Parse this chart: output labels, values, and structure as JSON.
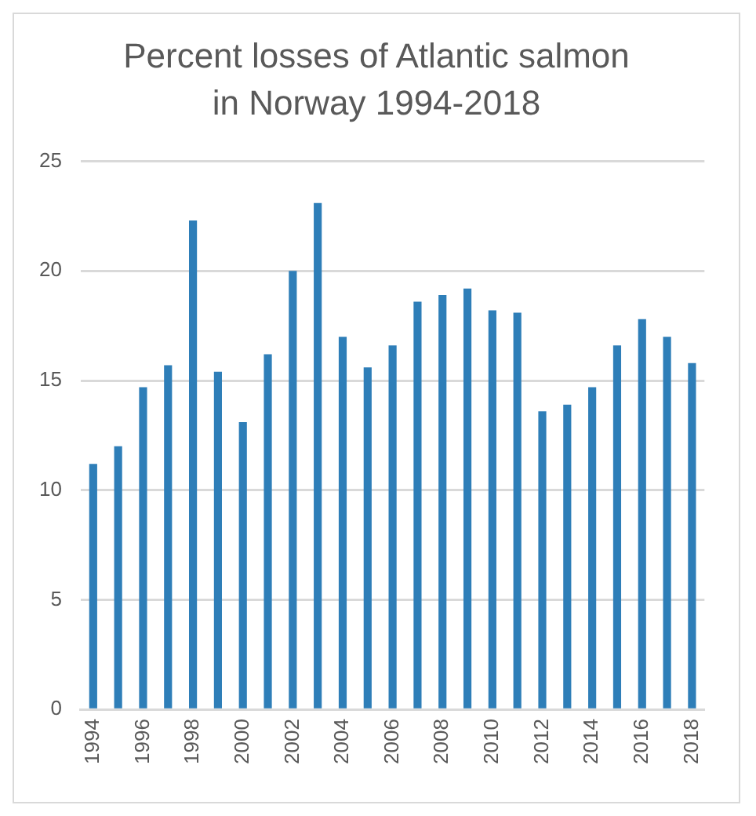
{
  "chart_data": {
    "type": "bar",
    "title": "Percent losses of Atlantic salmon in Norway 1994-2018",
    "categories": [
      "1994",
      null,
      "1996",
      null,
      "1998",
      null,
      "2000",
      null,
      "2002",
      null,
      "2004",
      null,
      "2006",
      null,
      "2008",
      null,
      "2010",
      null,
      "2012",
      null,
      "2014",
      null,
      "2016",
      null,
      "2018"
    ],
    "values": [
      11.2,
      12.0,
      14.7,
      15.7,
      22.3,
      15.4,
      13.1,
      16.2,
      20.0,
      23.1,
      17.0,
      15.6,
      16.6,
      18.6,
      18.9,
      19.2,
      18.2,
      18.1,
      13.6,
      13.9,
      14.7,
      16.6,
      17.8,
      17.0,
      15.8
    ],
    "color": "#2e7eb8",
    "ylim": [
      0,
      25
    ],
    "yticks": [
      0,
      5,
      10,
      15,
      20,
      25
    ],
    "grid": "y",
    "legend": false
  }
}
